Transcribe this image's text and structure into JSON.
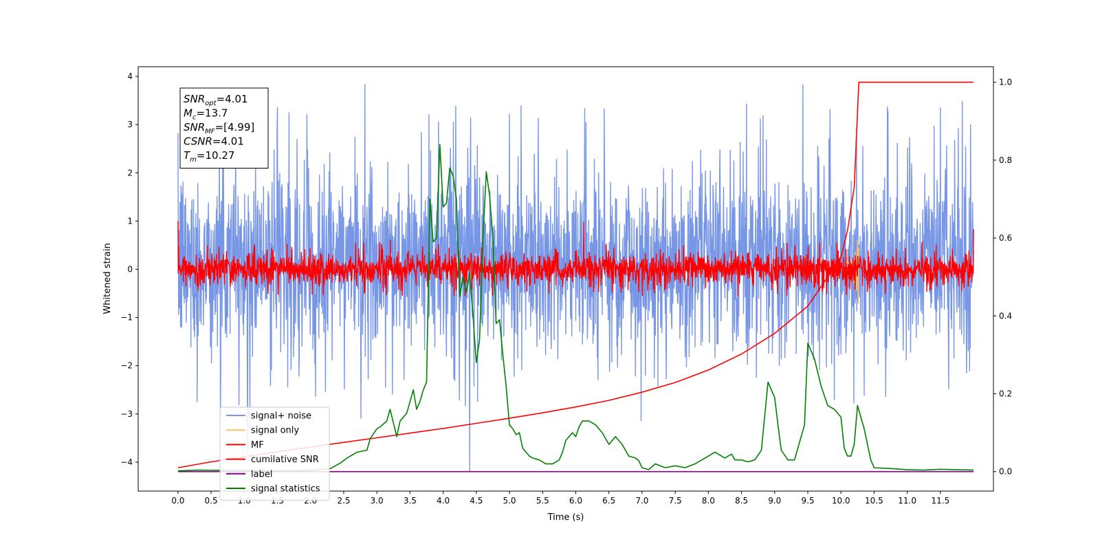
{
  "chart_data": {
    "type": "line",
    "xlabel": "Time (s)",
    "ylabel": "Whitened strain",
    "xlim": [
      -0.6,
      12.3
    ],
    "ylim": [
      -4.6,
      4.2
    ],
    "ylim_right": [
      -0.05,
      1.04
    ],
    "x_ticks": [
      0.0,
      0.5,
      1.0,
      1.5,
      2.0,
      2.5,
      3.0,
      3.5,
      4.0,
      4.5,
      5.0,
      5.5,
      6.0,
      6.5,
      7.0,
      7.5,
      8.0,
      8.5,
      9.0,
      9.5,
      10.0,
      10.5,
      11.0,
      11.5
    ],
    "x_tick_labels": [
      "0.0",
      "0.5",
      "1.0",
      "1.5",
      "2.0",
      "2.5",
      "3.0",
      "3.5",
      "4.0",
      "4.5",
      "5.0",
      "5.5",
      "6.0",
      "6.5",
      "7.0",
      "7.5",
      "8.0",
      "8.5",
      "9.0",
      "9.5",
      "10.0",
      "10.5",
      "11.0",
      "11.5"
    ],
    "y_ticks": [
      -4,
      -3,
      -2,
      -1,
      0,
      1,
      2,
      3,
      4
    ],
    "y_tick_labels": [
      "−4",
      "−3",
      "−2",
      "−1",
      "0",
      "1",
      "2",
      "3",
      "4"
    ],
    "y_right_ticks": [
      0.0,
      0.2,
      0.4,
      0.6,
      0.8,
      1.0
    ],
    "y_right_tick_labels": [
      "0.0",
      "0.2",
      "0.4",
      "0.6",
      "0.8",
      "1.0"
    ],
    "grid": false,
    "legend_position": "lower-left",
    "annotation": {
      "lines": [
        {
          "sym": "SNR",
          "sub": "opt",
          "value": "=4.01"
        },
        {
          "sym": "M",
          "sub": "c",
          "value": "=13.7"
        },
        {
          "sym": "SNR",
          "sub": "MF",
          "value": "=[4.99]"
        },
        {
          "sym": "CSNR",
          "sub": "",
          "value": "=4.01"
        },
        {
          "sym": "T",
          "sub": "m",
          "value": "=10.27"
        }
      ]
    },
    "series": [
      {
        "name": "signal+ noise",
        "color": "#7896e6",
        "axis": "left",
        "kind": "noise",
        "x_range": [
          0.0,
          12.0
        ],
        "band": [
          -1.6,
          1.9
        ],
        "extreme_spikes": [
          [
            2.82,
            3.83
          ],
          [
            4.4,
            -4.18
          ],
          [
            1.05,
            -3.8
          ],
          [
            1.5,
            3.35
          ],
          [
            11.5,
            3.35
          ]
        ]
      },
      {
        "name": "signal only",
        "color": "#f5c26b",
        "axis": "left",
        "kind": "chirp",
        "x_range": [
          10.0,
          10.27
        ],
        "peak_time": 10.26,
        "amplitude": 0.75
      },
      {
        "name": "MF",
        "color": "#ff0000",
        "axis": "left",
        "kind": "noise",
        "x_range": [
          0.0,
          12.0
        ],
        "band": [
          -0.3,
          0.3
        ],
        "extreme_spikes": [
          [
            0.0,
            1.0
          ],
          [
            6.12,
            0.98
          ],
          [
            12.0,
            0.83
          ]
        ]
      },
      {
        "name": "cumilative SNR",
        "color": "#ff0000",
        "axis": "right",
        "x": [
          0.0,
          0.5,
          1.0,
          1.5,
          2.0,
          2.5,
          3.0,
          3.5,
          4.0,
          4.5,
          5.0,
          5.5,
          6.0,
          6.5,
          7.0,
          7.5,
          8.0,
          8.5,
          9.0,
          9.5,
          10.0,
          10.1,
          10.2,
          10.27,
          10.3,
          11.0,
          12.0
        ],
        "y": [
          0.01,
          0.025,
          0.038,
          0.051,
          0.063,
          0.075,
          0.087,
          0.099,
          0.111,
          0.124,
          0.137,
          0.151,
          0.166,
          0.183,
          0.204,
          0.229,
          0.261,
          0.302,
          0.355,
          0.425,
          0.55,
          0.62,
          0.73,
          1.0,
          1.0,
          1.0,
          1.0
        ]
      },
      {
        "name": "label",
        "color": "#800080",
        "axis": "right",
        "x": [
          0.0,
          12.0
        ],
        "y": [
          0.0,
          0.0
        ]
      },
      {
        "name": "signal statistics",
        "color": "#008000",
        "axis": "right",
        "x": [
          0.0,
          0.3,
          0.8,
          1.5,
          2.0,
          2.3,
          2.45,
          2.55,
          2.7,
          2.85,
          2.9,
          3.0,
          3.05,
          3.15,
          3.2,
          3.3,
          3.35,
          3.45,
          3.55,
          3.6,
          3.65,
          3.7,
          3.75,
          3.8,
          3.85,
          3.9,
          3.95,
          4.0,
          4.05,
          4.1,
          4.15,
          4.2,
          4.25,
          4.3,
          4.35,
          4.4,
          4.45,
          4.5,
          4.55,
          4.6,
          4.65,
          4.7,
          4.75,
          4.8,
          4.85,
          4.9,
          4.95,
          5.0,
          5.05,
          5.1,
          5.15,
          5.2,
          5.25,
          5.3,
          5.35,
          5.45,
          5.55,
          5.65,
          5.75,
          5.8,
          5.85,
          5.95,
          6.0,
          6.05,
          6.1,
          6.2,
          6.3,
          6.4,
          6.5,
          6.6,
          6.7,
          6.8,
          6.9,
          6.95,
          7.0,
          7.1,
          7.2,
          7.35,
          7.5,
          7.65,
          7.8,
          7.95,
          8.1,
          8.25,
          8.35,
          8.4,
          8.5,
          8.6,
          8.7,
          8.8,
          8.9,
          9.0,
          9.05,
          9.1,
          9.2,
          9.3,
          9.35,
          9.45,
          9.5,
          9.55,
          9.6,
          9.7,
          9.8,
          9.9,
          10.0,
          10.05,
          10.1,
          10.15,
          10.2,
          10.25,
          10.35,
          10.45,
          10.5,
          10.75,
          11.0,
          11.25,
          11.5,
          11.75,
          12.0
        ],
        "y": [
          0.002,
          0.004,
          0.003,
          0.002,
          0.003,
          0.008,
          0.022,
          0.035,
          0.05,
          0.055,
          0.085,
          0.11,
          0.115,
          0.13,
          0.16,
          0.09,
          0.13,
          0.15,
          0.21,
          0.16,
          0.18,
          0.21,
          0.23,
          0.7,
          0.59,
          0.6,
          0.84,
          0.68,
          0.69,
          0.78,
          0.76,
          0.7,
          0.45,
          0.5,
          0.46,
          0.51,
          0.4,
          0.28,
          0.34,
          0.6,
          0.77,
          0.71,
          0.6,
          0.38,
          0.39,
          0.3,
          0.22,
          0.12,
          0.11,
          0.095,
          0.1,
          0.06,
          0.05,
          0.04,
          0.035,
          0.03,
          0.02,
          0.02,
          0.03,
          0.05,
          0.08,
          0.1,
          0.09,
          0.115,
          0.13,
          0.13,
          0.12,
          0.1,
          0.07,
          0.09,
          0.07,
          0.04,
          0.035,
          0.028,
          0.01,
          0.005,
          0.02,
          0.01,
          0.015,
          0.01,
          0.02,
          0.035,
          0.05,
          0.035,
          0.045,
          0.03,
          0.03,
          0.025,
          0.03,
          0.055,
          0.23,
          0.19,
          0.12,
          0.055,
          0.03,
          0.03,
          0.06,
          0.12,
          0.33,
          0.31,
          0.29,
          0.22,
          0.17,
          0.16,
          0.14,
          0.06,
          0.04,
          0.04,
          0.07,
          0.17,
          0.11,
          0.03,
          0.01,
          0.008,
          0.005,
          0.004,
          0.006,
          0.005,
          0.004
        ]
      }
    ]
  }
}
